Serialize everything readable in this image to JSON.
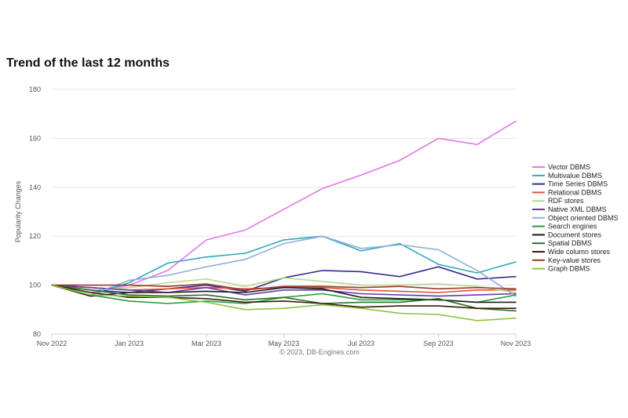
{
  "chart_data": {
    "type": "line",
    "title": "Trend of the last 12 months",
    "ylabel": "Popularity Changes",
    "xlabel": "",
    "credits": "© 2023, DB-Engines.com",
    "ylim": [
      80,
      180
    ],
    "y_ticks": [
      80,
      100,
      120,
      140,
      160,
      180
    ],
    "x_tick_labels": [
      "Nov 2022",
      "Jan 2023",
      "Mar 2023",
      "May 2023",
      "Jul 2023",
      "Sep 2023",
      "Nov 2023"
    ],
    "x_tick_index": [
      0,
      2,
      4,
      6,
      8,
      10,
      12
    ],
    "x": [
      "Nov 2022",
      "Dec 2022",
      "Jan 2023",
      "Feb 2023",
      "Mar 2023",
      "Apr 2023",
      "May 2023",
      "Jun 2023",
      "Jul 2023",
      "Aug 2023",
      "Sep 2023",
      "Oct 2023",
      "Nov 2023"
    ],
    "grid": true,
    "legend_position": "right",
    "series": [
      {
        "name": "Vector DBMS",
        "color": "#e377e8",
        "values": [
          100,
          97,
          100,
          106,
          118.5,
          122.5,
          131,
          139.5,
          145,
          151,
          160,
          157.5,
          167
        ]
      },
      {
        "name": "Multivalue DBMS",
        "color": "#2ea8c0",
        "values": [
          100,
          96,
          101,
          109,
          111.5,
          113,
          118.5,
          120,
          114,
          117,
          108.5,
          105,
          109.5
        ]
      },
      {
        "name": "Time Series DBMS",
        "color": "#3b2a8f",
        "values": [
          100,
          98,
          97,
          98.5,
          100,
          97.5,
          103,
          106,
          105.5,
          103.5,
          107.5,
          102.5,
          103.5
        ]
      },
      {
        "name": "Relational DBMS",
        "color": "#e0533a",
        "values": [
          100,
          99,
          98,
          98.5,
          99,
          98.5,
          99,
          99,
          98,
          97.5,
          97,
          98,
          98
        ]
      },
      {
        "name": "RDF stores",
        "color": "#b8d98a",
        "values": [
          100,
          98,
          99,
          101,
          102.5,
          99.5,
          103,
          101.5,
          100,
          100,
          100.5,
          99.5,
          97
        ]
      },
      {
        "name": "Native XML DBMS",
        "color": "#6a3aa8",
        "values": [
          100,
          99,
          98,
          97,
          99,
          96,
          98,
          98,
          96.5,
          96,
          95.5,
          96,
          96.5
        ]
      },
      {
        "name": "Object oriented DBMS",
        "color": "#8fb0d8",
        "values": [
          100,
          96,
          102,
          104,
          107.5,
          110.5,
          117,
          120,
          115,
          116.5,
          114.5,
          106,
          95.5
        ]
      },
      {
        "name": "Search engines",
        "color": "#1f9e3a",
        "values": [
          100,
          96,
          93.5,
          92.5,
          93.5,
          92.5,
          95,
          96.5,
          94,
          94,
          94,
          93,
          96
        ]
      },
      {
        "name": "Document stores",
        "color": "#1c1c1c",
        "values": [
          100,
          95.5,
          97,
          97,
          97.5,
          97,
          99,
          98.5,
          95,
          94.5,
          94,
          93,
          93
        ]
      },
      {
        "name": "Spatial DBMS",
        "color": "#2c6e2c",
        "values": [
          100,
          98,
          96,
          95.5,
          96,
          94,
          95,
          92.5,
          93,
          93,
          94.5,
          90.5,
          89.5
        ]
      },
      {
        "name": "Wide column stores",
        "color": "#3a1a0a",
        "values": [
          100,
          97,
          95,
          95,
          94.5,
          93,
          93.5,
          92.5,
          91,
          91.5,
          91.5,
          90.5,
          90.5
        ]
      },
      {
        "name": "Key-value stores",
        "color": "#9a3a2a",
        "values": [
          100,
          100,
          100,
          99.5,
          100.5,
          98,
          99.5,
          99.5,
          99,
          99.5,
          98.5,
          99,
          98.5
        ]
      },
      {
        "name": "Graph DBMS",
        "color": "#8cc43c",
        "values": [
          100,
          96,
          95.5,
          95,
          93,
          90,
          90.5,
          92,
          90.5,
          88.5,
          88,
          85.5,
          86.5
        ]
      }
    ]
  }
}
